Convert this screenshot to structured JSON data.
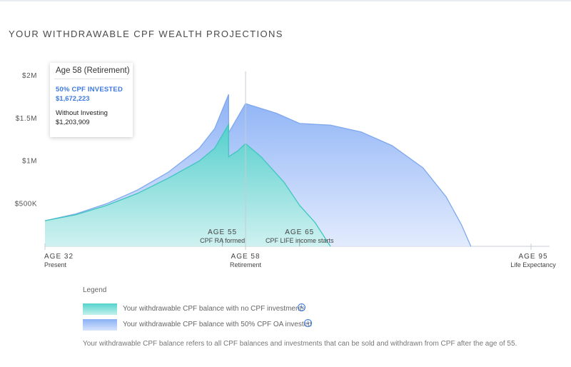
{
  "title": "YOUR WITHDRAWABLE CPF WEALTH PROJECTIONS",
  "colors": {
    "accent": "#3d7ae0",
    "teal": "#5fd4cd",
    "blue": "#8fb4f5"
  },
  "chart_data": {
    "type": "area",
    "title": "YOUR WITHDRAWABLE CPF WEALTH PROJECTIONS",
    "xlim": [
      32,
      95
    ],
    "ylim": [
      0,
      2000000
    ],
    "y_ticks": [
      {
        "value": 500000,
        "label": "$500K"
      },
      {
        "value": 1000000,
        "label": "$1M"
      },
      {
        "value": 1500000,
        "label": "$1.5M"
      },
      {
        "value": 2000000,
        "label": "$2M"
      }
    ],
    "x_markers": [
      {
        "age": 32,
        "label": "AGE 32",
        "sub": "Present",
        "position": "bottom"
      },
      {
        "age": 58,
        "label": "AGE 58",
        "sub": "Retirement",
        "position": "bottom"
      },
      {
        "age": 95,
        "label": "AGE 95",
        "sub": "Life Expectancy",
        "position": "bottom"
      },
      {
        "age": 55,
        "label": "AGE 55",
        "sub": "CPF RA formed",
        "position": "inside"
      },
      {
        "age": 65,
        "label": "AGE 65",
        "sub": "CPF LIFE income starts",
        "position": "inside"
      }
    ],
    "series": [
      {
        "name": "Your withdrawable CPF balance with 50% CPF OA invested",
        "color": "#8fb4f5",
        "points": [
          [
            32,
            300000
          ],
          [
            36,
            380000
          ],
          [
            40,
            500000
          ],
          [
            44,
            660000
          ],
          [
            48,
            870000
          ],
          [
            52,
            1150000
          ],
          [
            54,
            1380000
          ],
          [
            55.8,
            1780000
          ],
          [
            55.8,
            1330000
          ],
          [
            58,
            1672223
          ],
          [
            62,
            1560000
          ],
          [
            65,
            1440000
          ],
          [
            69,
            1420000
          ],
          [
            73,
            1340000
          ],
          [
            77,
            1180000
          ],
          [
            81,
            920000
          ],
          [
            84,
            580000
          ],
          [
            86,
            250000
          ],
          [
            87.2,
            0
          ]
        ]
      },
      {
        "name": "Your withdrawable CPF balance with no CPF investments",
        "color": "#5fd4cd",
        "points": [
          [
            32,
            300000
          ],
          [
            36,
            370000
          ],
          [
            40,
            480000
          ],
          [
            44,
            620000
          ],
          [
            48,
            800000
          ],
          [
            52,
            1000000
          ],
          [
            54,
            1150000
          ],
          [
            55.8,
            1430000
          ],
          [
            55.8,
            1050000
          ],
          [
            57,
            1120000
          ],
          [
            58,
            1203909
          ],
          [
            60,
            1050000
          ],
          [
            63,
            750000
          ],
          [
            65,
            480000
          ],
          [
            67,
            280000
          ],
          [
            69,
            0
          ]
        ]
      }
    ],
    "tooltip": {
      "title": "Age 58 (Retirement)",
      "invested_label": "50% CPF INVESTED",
      "invested_value": "$1,672,223",
      "no_invest_label": "Without Investing",
      "no_invest_value": "$1,203,909"
    }
  },
  "legend": {
    "title": "Legend",
    "items": [
      {
        "label": "Your withdrawable CPF balance with no CPF investments",
        "icon": "info-icon"
      },
      {
        "label": "Your withdrawable CPF balance with 50% CPF OA invested",
        "icon": "info-icon"
      }
    ]
  },
  "footnote": "Your withdrawable CPF balance refers to all CPF balances and investments that can be sold and withdrawn from CPF after the age of 55."
}
